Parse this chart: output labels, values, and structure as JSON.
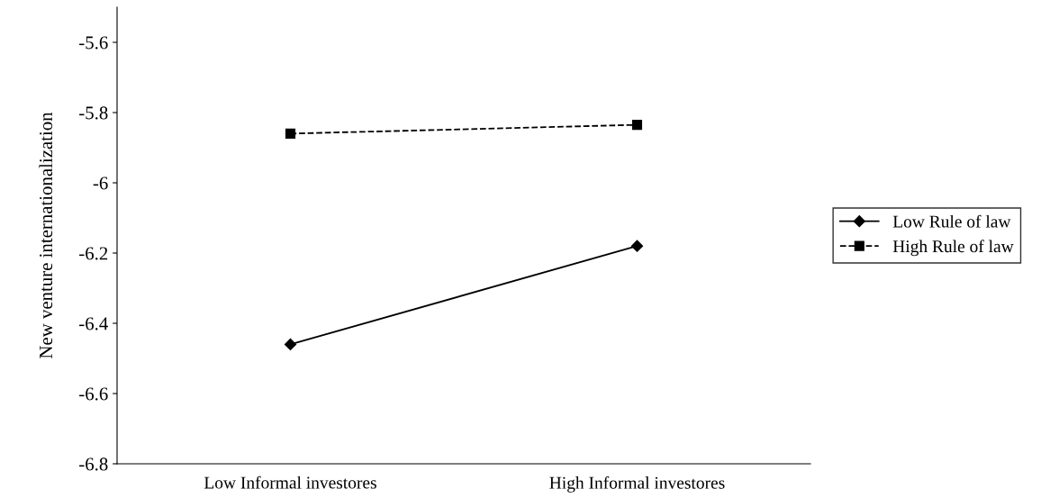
{
  "chart_data": {
    "type": "line",
    "ylabel": "New venture internationalization",
    "categories": [
      "Low Informal investores",
      "High Informal investores"
    ],
    "series": [
      {
        "name": "Low Rule of law",
        "color": "#000000",
        "values": [
          -6.46,
          -6.18
        ],
        "marker": "diamond",
        "line_style": "solid"
      },
      {
        "name": "High Rule of law",
        "color": "#000000",
        "values": [
          -5.86,
          -5.835
        ],
        "marker": "square",
        "line_style": "dashed"
      }
    ],
    "ylim": [
      -6.8,
      -5.5
    ],
    "yticks": [
      -6.8,
      -6.6,
      -6.4,
      -6.2,
      -6,
      -5.8,
      -5.6
    ],
    "grid": false,
    "legend": "right"
  }
}
